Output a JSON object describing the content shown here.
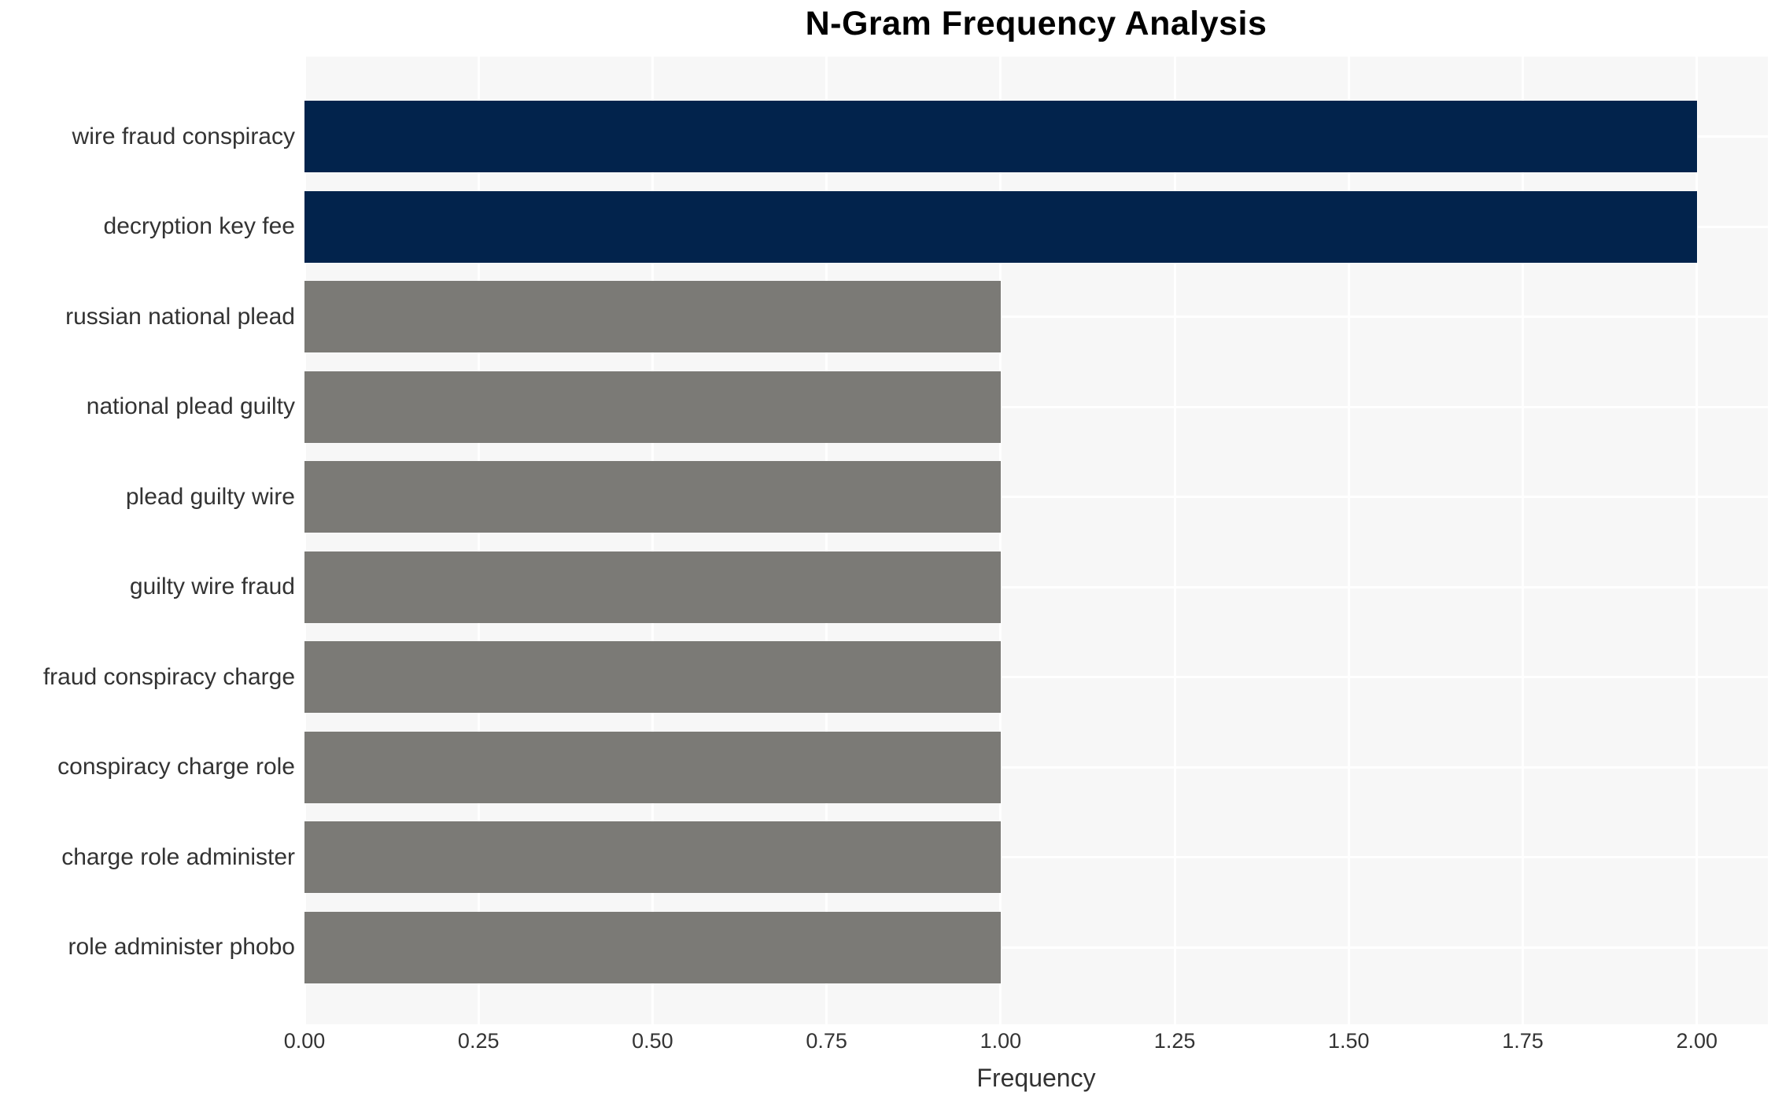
{
  "chart_data": {
    "type": "bar",
    "orientation": "horizontal",
    "title": "N-Gram Frequency Analysis",
    "xlabel": "Frequency",
    "ylabel": "",
    "categories": [
      "wire fraud conspiracy",
      "decryption key fee",
      "russian national plead",
      "national plead guilty",
      "plead guilty wire",
      "guilty wire fraud",
      "fraud conspiracy charge",
      "conspiracy charge role",
      "charge role administer",
      "role administer phobo"
    ],
    "values": [
      2,
      2,
      1,
      1,
      1,
      1,
      1,
      1,
      1,
      1
    ],
    "bar_colors": [
      "#02234c",
      "#02234c",
      "#7b7a76",
      "#7b7a76",
      "#7b7a76",
      "#7b7a76",
      "#7b7a76",
      "#7b7a76",
      "#7b7a76",
      "#7b7a76"
    ],
    "xlim": [
      0,
      2.102
    ],
    "xticks": [
      0,
      0.25,
      0.5,
      0.75,
      1.0,
      1.25,
      1.5,
      1.75,
      2.0
    ],
    "xtick_labels": [
      "0.00",
      "0.25",
      "0.50",
      "0.75",
      "1.00",
      "1.25",
      "1.50",
      "1.75",
      "2.00"
    ],
    "grid": true,
    "legend_position": "none"
  },
  "style_colors": {
    "plot_background": "#f7f7f7",
    "grid_color": "#ffffff",
    "highlight_bar": "#02234c",
    "default_bar": "#7b7a76",
    "title_color": "#000000",
    "tick_label_color": "#333333"
  }
}
